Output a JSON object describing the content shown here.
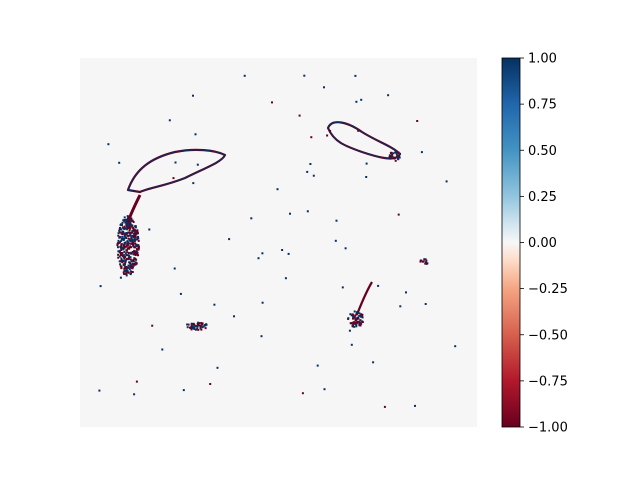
{
  "chart_data": {
    "type": "heatmap",
    "title": "",
    "xlabel": "",
    "ylabel": "",
    "axes_visible": false,
    "background_value": 0.0,
    "colormap": "RdBu",
    "colors": {
      "min": "#67001f",
      "neg_mid": "#d6604d",
      "zero": "#f7f7f7",
      "pos_mid": "#4393c3",
      "max": "#053061"
    },
    "colorbar": {
      "vmin": -1.0,
      "vmax": 1.0,
      "ticks": [
        {
          "value": 1.0,
          "label": "1.00"
        },
        {
          "value": 0.75,
          "label": "0.75"
        },
        {
          "value": 0.5,
          "label": "0.50"
        },
        {
          "value": 0.25,
          "label": "0.25"
        },
        {
          "value": 0.0,
          "label": "0.00"
        },
        {
          "value": -0.25,
          "label": "−0.25"
        },
        {
          "value": -0.5,
          "label": "−0.50"
        },
        {
          "value": -0.75,
          "label": "−0.75"
        },
        {
          "value": -1.0,
          "label": "−1.00"
        }
      ]
    },
    "description_values": "Sparse map of values mostly 0; scattered clusters of pixels at -1.00 (dark red) and +1.00 (dark blue) forming curved blobs."
  }
}
